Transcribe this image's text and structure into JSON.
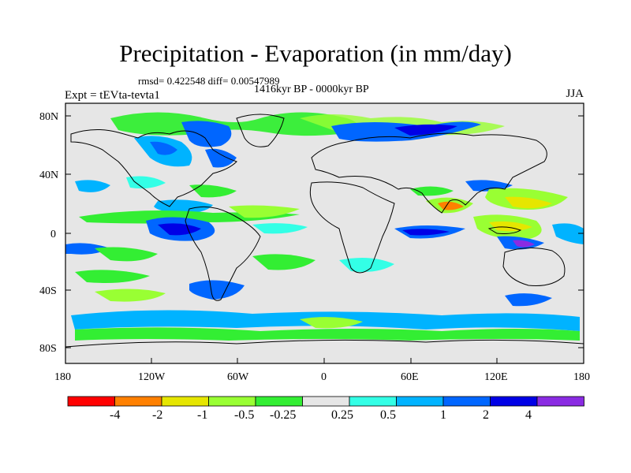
{
  "header": {
    "title": "Precipitation - Evaporation (in mm/day)",
    "stats": "rmsd= 0.422548 diff= 0.00547989",
    "period": "1416kyr BP - 0000kyr BP",
    "experiment": "Expt = tEVta-tevta1",
    "season": "JJA"
  },
  "axes": {
    "lat_ticks": [
      "80N",
      "40N",
      "0",
      "40S",
      "80S"
    ],
    "lon_ticks": [
      "180",
      "120W",
      "60W",
      "0",
      "60E",
      "120E",
      "180"
    ]
  },
  "colorbar": {
    "labels": [
      "-4",
      "-2",
      "-1",
      "-0.5",
      "-0.25",
      "0.25",
      "0.5",
      "1",
      "2",
      "4"
    ],
    "colors": [
      "#ff0000",
      "#ff8000",
      "#e6e600",
      "#99ff33",
      "#33ee33",
      "#e6e6e6",
      "#33ffe6",
      "#00b3ff",
      "#0066ff",
      "#0000e6",
      "#8a2be2"
    ]
  },
  "map_colors": {
    "ocean_land_bg": "#e6e6e6",
    "coastline": "#000000"
  }
}
